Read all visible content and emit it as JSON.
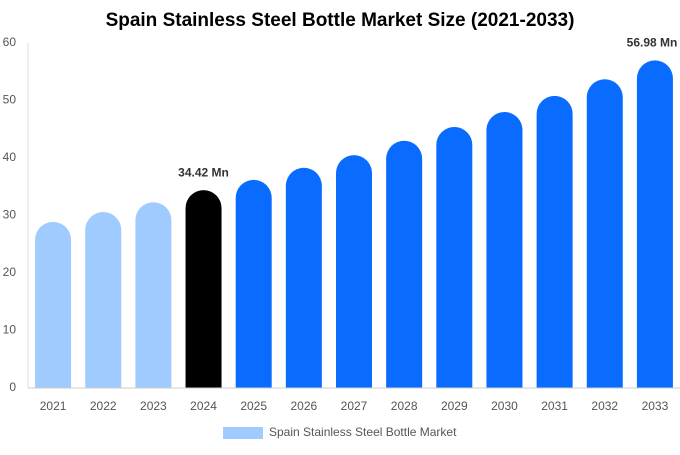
{
  "chart_data": {
    "type": "bar",
    "title": "Spain Stainless Steel Bottle Market Size (2021-2033)",
    "categories": [
      "2021",
      "2022",
      "2023",
      "2024",
      "2025",
      "2026",
      "2027",
      "2028",
      "2029",
      "2030",
      "2031",
      "2032",
      "2033"
    ],
    "series": [
      {
        "name": "Spain Stainless Steel Bottle Market",
        "color": "#a0cbff",
        "values": [
          28.9,
          30.6,
          32.3,
          34.42,
          36.2,
          38.3,
          40.5,
          43.0,
          45.4,
          48.0,
          50.8,
          53.7,
          56.98
        ],
        "colors": [
          "#a0cbff",
          "#a0cbff",
          "#a0cbff",
          "#000000",
          "#0a6cff",
          "#0a6cff",
          "#0a6cff",
          "#0a6cff",
          "#0a6cff",
          "#0a6cff",
          "#0a6cff",
          "#0a6cff",
          "#0a6cff"
        ],
        "value_labels": [
          null,
          null,
          null,
          "34.42 Mn",
          null,
          null,
          null,
          null,
          null,
          null,
          null,
          null,
          "56.98 Mn"
        ]
      }
    ],
    "ylim": [
      0,
      60
    ],
    "yticks": [
      0,
      10,
      20,
      30,
      40,
      50,
      60
    ],
    "grid": false
  }
}
